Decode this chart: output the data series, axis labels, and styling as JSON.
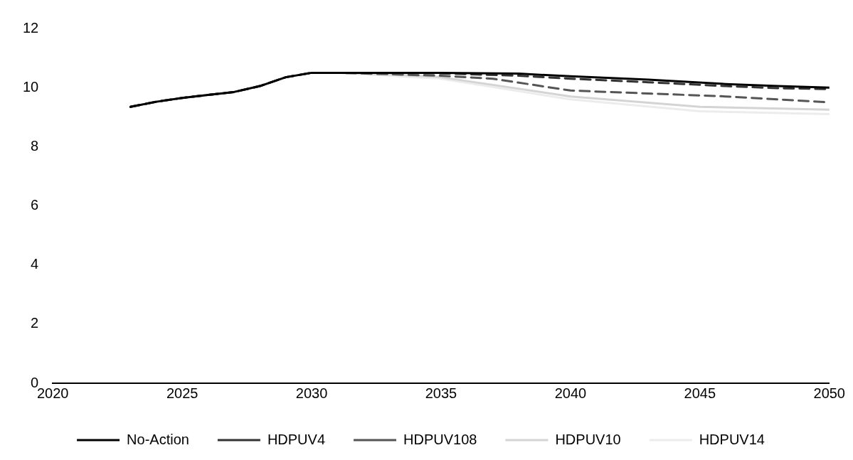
{
  "chart_data": {
    "type": "line",
    "xlim": [
      2020,
      2050
    ],
    "xticks": [
      2020,
      2025,
      2030,
      2035,
      2040,
      2045,
      2050
    ],
    "ylim": [
      0,
      12
    ],
    "yticks": [
      0,
      2,
      4,
      6,
      8,
      10,
      12
    ],
    "grid": false,
    "legend": "bottom",
    "marker": "none",
    "series": [
      {
        "name": "No-Action",
        "color": "#000000",
        "line_style": "solid",
        "x": [
          2023,
          2024,
          2025,
          2026,
          2027,
          2028,
          2029,
          2030,
          2031,
          2033,
          2035,
          2038,
          2040,
          2043,
          2046,
          2048,
          2050
        ],
        "values": [
          9.35,
          9.52,
          9.65,
          9.75,
          9.85,
          10.05,
          10.35,
          10.5,
          10.5,
          10.5,
          10.5,
          10.47,
          10.38,
          10.27,
          10.12,
          10.05,
          10.0
        ]
      },
      {
        "name": "HDPUV4",
        "color": "#333333",
        "line_style": "dashed",
        "x": [
          2023,
          2024,
          2025,
          2026,
          2027,
          2028,
          2029,
          2030,
          2031,
          2033,
          2035,
          2038,
          2040,
          2043,
          2046,
          2048,
          2050
        ],
        "values": [
          9.35,
          9.52,
          9.65,
          9.75,
          9.85,
          10.05,
          10.35,
          10.5,
          10.5,
          10.5,
          10.48,
          10.4,
          10.3,
          10.18,
          10.05,
          9.98,
          9.95
        ]
      },
      {
        "name": "HDPUV108",
        "color": "#555555",
        "line_style": "dashed",
        "x": [
          2023,
          2024,
          2025,
          2026,
          2027,
          2028,
          2029,
          2030,
          2031,
          2033,
          2035,
          2037,
          2040,
          2043,
          2046,
          2048,
          2050
        ],
        "values": [
          9.35,
          9.52,
          9.65,
          9.75,
          9.85,
          10.05,
          10.35,
          10.5,
          10.5,
          10.45,
          10.4,
          10.3,
          9.9,
          9.8,
          9.7,
          9.6,
          9.5
        ]
      },
      {
        "name": "HDPUV10",
        "color": "#d4d4d4",
        "line_style": "solid",
        "x": [
          2023,
          2024,
          2025,
          2026,
          2027,
          2028,
          2029,
          2030,
          2031,
          2033,
          2035,
          2040,
          2045,
          2050
        ],
        "values": [
          9.35,
          9.52,
          9.65,
          9.75,
          9.85,
          10.05,
          10.35,
          10.5,
          10.5,
          10.45,
          10.35,
          9.7,
          9.35,
          9.25
        ]
      },
      {
        "name": "HDPUV14",
        "color": "#ececec",
        "line_style": "solid",
        "x": [
          2023,
          2024,
          2025,
          2026,
          2027,
          2028,
          2029,
          2030,
          2031,
          2033,
          2035,
          2040,
          2045,
          2050
        ],
        "values": [
          9.35,
          9.52,
          9.65,
          9.75,
          9.85,
          10.05,
          10.35,
          10.5,
          10.5,
          10.4,
          10.3,
          9.6,
          9.2,
          9.1
        ]
      }
    ]
  }
}
